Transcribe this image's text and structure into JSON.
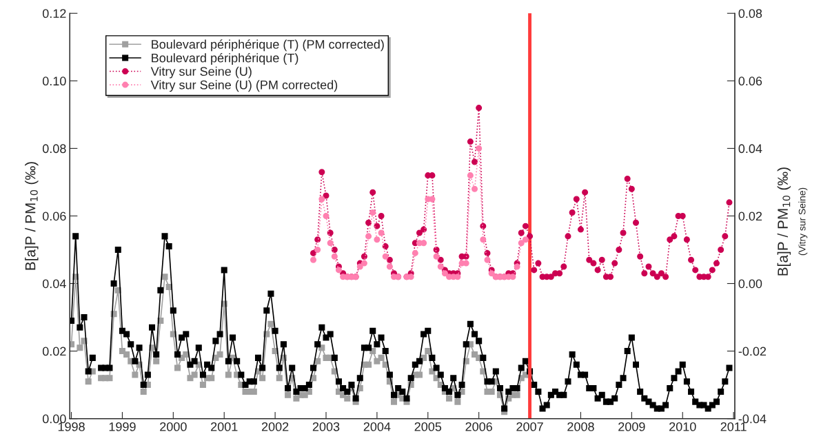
{
  "chart_data": {
    "type": "line",
    "ylabel": "B[a]P / PM$_{10}$ (‰)",
    "y2label": "B[a]P / PM$_{10}$ (‰)\n(Vitry sur Seine)",
    "x": [
      "1998-01",
      "1998-02",
      "1998-03",
      "1998-04",
      "1998-05",
      "1998-06",
      "1998-07",
      "1998-08",
      "1998-09",
      "1998-10",
      "1998-11",
      "1998-12",
      "1999-01",
      "1999-02",
      "1999-03",
      "1999-04",
      "1999-05",
      "1999-06",
      "1999-07",
      "1999-08",
      "1999-09",
      "1999-10",
      "1999-11",
      "1999-12",
      "2000-01",
      "2000-02",
      "2000-03",
      "2000-04",
      "2000-05",
      "2000-06",
      "2000-07",
      "2000-08",
      "2000-09",
      "2000-10",
      "2000-11",
      "2000-12",
      "2001-01",
      "2001-02",
      "2001-03",
      "2001-04",
      "2001-05",
      "2001-06",
      "2001-07",
      "2001-08",
      "2001-09",
      "2001-10",
      "2001-11",
      "2001-12",
      "2002-01",
      "2002-02",
      "2002-03",
      "2002-04",
      "2002-05",
      "2002-06",
      "2002-07",
      "2002-08",
      "2002-09",
      "2002-10",
      "2002-11",
      "2002-12",
      "2003-01",
      "2003-02",
      "2003-03",
      "2003-04",
      "2003-05",
      "2003-06",
      "2003-07",
      "2003-08",
      "2003-09",
      "2003-10",
      "2003-11",
      "2003-12",
      "2004-01",
      "2004-02",
      "2004-03",
      "2004-04",
      "2004-05",
      "2004-06",
      "2004-07",
      "2004-08",
      "2004-09",
      "2004-10",
      "2004-11",
      "2004-12",
      "2005-01",
      "2005-02",
      "2005-03",
      "2005-04",
      "2005-05",
      "2005-06",
      "2005-07",
      "2005-08",
      "2005-09",
      "2005-10",
      "2005-11",
      "2005-12",
      "2006-01",
      "2006-02",
      "2006-03",
      "2006-04",
      "2006-05",
      "2006-06",
      "2006-07",
      "2006-08",
      "2006-09",
      "2006-10",
      "2006-11",
      "2006-12",
      "2007-01",
      "2007-02",
      "2007-03",
      "2007-04",
      "2007-05",
      "2007-06",
      "2007-07",
      "2007-08",
      "2007-09",
      "2007-10",
      "2007-11",
      "2007-12",
      "2008-01",
      "2008-02",
      "2008-03",
      "2008-04",
      "2008-05",
      "2008-06",
      "2008-07",
      "2008-08",
      "2008-09",
      "2008-10",
      "2008-11",
      "2008-12",
      "2009-01",
      "2009-02",
      "2009-03",
      "2009-04",
      "2009-05",
      "2009-06",
      "2009-07",
      "2009-08",
      "2009-09",
      "2009-10",
      "2009-11",
      "2009-12",
      "2010-01",
      "2010-02",
      "2010-03",
      "2010-04",
      "2010-05",
      "2010-06",
      "2010-07",
      "2010-08",
      "2010-09",
      "2010-10",
      "2010-11",
      "2010-12"
    ],
    "series": [
      {
        "name": "Boulevard périphérique (T) (PM corrected)",
        "color": "#a0a0a0",
        "marker": "square",
        "line_style": "solid",
        "values": [
          0.022,
          0.042,
          0.021,
          0.023,
          0.011,
          0.014,
          null,
          0.012,
          0.012,
          0.012,
          0.031,
          0.038,
          0.02,
          0.019,
          0.017,
          0.013,
          0.016,
          0.008,
          0.01,
          0.021,
          0.017,
          0.029,
          0.042,
          0.039,
          0.025,
          0.015,
          0.018,
          0.019,
          0.012,
          0.013,
          0.016,
          0.01,
          0.012,
          0.012,
          0.018,
          0.019,
          0.034,
          0.013,
          0.018,
          0.013,
          0.01,
          0.008,
          0.008,
          0.008,
          0.014,
          0.012,
          0.025,
          0.028,
          0.02,
          0.012,
          0.018,
          0.007,
          0.012,
          0.006,
          0.007,
          0.007,
          0.008,
          0.012,
          0.017,
          0.021,
          0.018,
          0.018,
          0.014,
          0.008,
          0.007,
          0.006,
          0.009,
          0.005,
          0.009,
          0.016,
          0.016,
          0.02,
          0.017,
          0.018,
          0.016,
          0.011,
          0.005,
          0.007,
          0.006,
          0.005,
          0.01,
          0.013,
          0.013,
          0.018,
          0.02,
          0.014,
          0.012,
          0.01,
          0.008,
          0.006,
          0.009,
          0.005,
          0.008,
          0.017,
          0.022,
          0.019,
          0.018,
          0.014,
          0.008,
          0.008,
          0.011,
          0.007,
          0.002,
          0.006,
          0.007,
          0.007,
          0.012,
          0.013,
          0.013,
          null,
          null,
          null,
          null,
          null,
          null,
          null,
          null,
          null,
          null,
          null,
          null,
          null,
          null,
          null,
          null,
          null,
          null,
          null,
          null,
          null,
          null,
          null,
          null,
          null,
          null,
          null,
          null,
          null,
          null,
          null,
          null,
          null,
          null,
          null,
          null,
          null,
          null,
          null,
          null,
          null,
          null,
          null,
          null,
          null,
          null,
          null
        ]
      },
      {
        "name": "Boulevard périphérique (T)",
        "color": "#000000",
        "marker": "square",
        "line_style": "solid",
        "values": [
          0.029,
          0.054,
          0.027,
          0.03,
          0.014,
          0.018,
          null,
          0.015,
          0.015,
          0.015,
          0.04,
          0.05,
          0.026,
          0.025,
          0.022,
          0.017,
          0.021,
          0.01,
          0.013,
          0.027,
          0.019,
          0.038,
          0.054,
          0.051,
          0.032,
          0.019,
          0.024,
          0.025,
          0.016,
          0.017,
          0.021,
          0.013,
          0.016,
          0.015,
          0.023,
          0.025,
          0.044,
          0.017,
          0.024,
          0.017,
          0.013,
          0.01,
          0.011,
          0.011,
          0.018,
          0.015,
          0.032,
          0.037,
          0.026,
          0.015,
          0.022,
          0.009,
          0.015,
          0.008,
          0.009,
          0.009,
          0.01,
          0.015,
          0.022,
          0.027,
          0.024,
          0.025,
          0.018,
          0.011,
          0.009,
          0.008,
          0.01,
          0.006,
          0.012,
          0.021,
          0.021,
          0.026,
          0.022,
          0.024,
          0.02,
          0.013,
          0.007,
          0.009,
          0.008,
          0.006,
          0.012,
          0.016,
          0.017,
          0.025,
          0.026,
          0.018,
          0.015,
          0.013,
          0.009,
          0.008,
          0.012,
          0.007,
          0.01,
          0.022,
          0.028,
          0.025,
          0.023,
          0.018,
          0.011,
          0.011,
          0.014,
          0.009,
          0.003,
          0.008,
          0.009,
          0.009,
          0.015,
          0.017,
          0.014,
          0.01,
          0.008,
          0.003,
          0.004,
          0.007,
          0.008,
          0.007,
          0.007,
          0.011,
          0.019,
          0.016,
          0.013,
          0.013,
          0.009,
          0.009,
          0.006,
          0.007,
          0.005,
          0.005,
          0.006,
          0.01,
          0.012,
          0.02,
          0.024,
          0.016,
          0.008,
          0.006,
          0.005,
          0.004,
          0.003,
          0.003,
          0.004,
          0.009,
          0.012,
          0.014,
          0.016,
          0.011,
          0.008,
          0.005,
          0.004,
          0.004,
          0.003,
          0.004,
          0.005,
          0.008,
          0.011,
          0.015
        ]
      },
      {
        "name": "Vitry sur Seine (U)",
        "color": "#cc0052",
        "marker": "circle",
        "line_style": "dotted",
        "axis": "y2",
        "values": [
          null,
          null,
          null,
          null,
          null,
          null,
          null,
          null,
          null,
          null,
          null,
          null,
          null,
          null,
          null,
          null,
          null,
          null,
          null,
          null,
          null,
          null,
          null,
          null,
          null,
          null,
          null,
          null,
          null,
          null,
          null,
          null,
          null,
          null,
          null,
          null,
          null,
          null,
          null,
          null,
          null,
          null,
          null,
          null,
          null,
          null,
          null,
          null,
          null,
          null,
          null,
          null,
          null,
          null,
          null,
          null,
          null,
          0.009,
          0.013,
          0.033,
          0.026,
          0.015,
          0.01,
          0.005,
          0.003,
          0.002,
          0.002,
          0.002,
          0.006,
          0.008,
          0.018,
          0.027,
          0.017,
          0.02,
          0.011,
          0.007,
          0.003,
          0.002,
          null,
          0.002,
          0.003,
          0.012,
          0.015,
          0.016,
          0.032,
          0.032,
          0.01,
          0.007,
          0.004,
          0.003,
          0.003,
          0.003,
          0.008,
          0.008,
          0.042,
          0.036,
          0.052,
          0.017,
          0.009,
          0.004,
          0.002,
          0.002,
          0.002,
          0.003,
          0.003,
          0.006,
          0.015,
          0.017,
          0.014,
          0.004,
          0.006,
          0.002,
          0.002,
          0.002,
          0.003,
          0.003,
          0.005,
          0.014,
          0.021,
          0.025,
          0.016,
          0.027,
          0.007,
          0.006,
          0.004,
          0.007,
          0.002,
          0.002,
          0.006,
          0.01,
          0.015,
          0.031,
          0.028,
          0.018,
          0.008,
          0.003,
          0.005,
          0.003,
          0.002,
          0.003,
          0.002,
          0.013,
          0.014,
          0.02,
          0.02,
          0.013,
          0.007,
          0.004,
          0.002,
          0.002,
          0.002,
          0.004,
          0.006,
          0.01,
          0.014,
          0.024
        ]
      },
      {
        "name": "Vitry sur Seine (U) (PM corrected)",
        "color": "#ff80b0",
        "marker": "circle",
        "line_style": "dotted",
        "axis": "y2",
        "values": [
          null,
          null,
          null,
          null,
          null,
          null,
          null,
          null,
          null,
          null,
          null,
          null,
          null,
          null,
          null,
          null,
          null,
          null,
          null,
          null,
          null,
          null,
          null,
          null,
          null,
          null,
          null,
          null,
          null,
          null,
          null,
          null,
          null,
          null,
          null,
          null,
          null,
          null,
          null,
          null,
          null,
          null,
          null,
          null,
          null,
          null,
          null,
          null,
          null,
          null,
          null,
          null,
          null,
          null,
          null,
          null,
          null,
          0.007,
          0.01,
          0.025,
          0.02,
          0.012,
          0.008,
          0.004,
          0.002,
          0.002,
          0.002,
          0.002,
          0.005,
          0.006,
          0.014,
          0.021,
          0.013,
          0.015,
          0.008,
          0.005,
          0.002,
          0.002,
          null,
          0.002,
          0.002,
          0.009,
          0.012,
          0.012,
          0.025,
          0.025,
          0.008,
          0.005,
          0.003,
          0.002,
          0.002,
          0.002,
          0.006,
          0.006,
          0.032,
          0.028,
          0.04,
          0.013,
          0.007,
          0.003,
          0.002,
          0.002,
          0.002,
          0.002,
          0.002,
          0.005,
          0.012,
          0.013,
          null,
          null,
          null,
          null,
          null,
          null,
          null,
          null,
          null,
          null,
          null,
          null,
          null,
          null,
          null,
          null,
          null,
          null,
          null,
          null,
          null,
          null,
          null,
          null,
          null,
          null,
          null,
          null,
          null,
          null,
          null,
          null,
          null,
          null,
          null,
          null,
          null,
          null,
          null,
          null,
          null,
          null,
          null,
          null,
          null,
          null,
          null,
          null
        ]
      }
    ],
    "xlim": [
      "1997-12-20",
      "2011-01-10"
    ],
    "xticks": [
      {
        "value": "1998",
        "label": "1998"
      },
      {
        "value": "1999",
        "label": "1999"
      },
      {
        "value": "2000",
        "label": "2000"
      },
      {
        "value": "2001",
        "label": "2001"
      },
      {
        "value": "2002",
        "label": "2002"
      },
      {
        "value": "2003",
        "label": "2003"
      },
      {
        "value": "2004",
        "label": "2004"
      },
      {
        "value": "2005",
        "label": "2005"
      },
      {
        "value": "2006",
        "label": "2006"
      },
      {
        "value": "2007",
        "label": "2007"
      },
      {
        "value": "2008",
        "label": "2008"
      },
      {
        "value": "2009",
        "label": "2009"
      },
      {
        "value": "2010",
        "label": "2010"
      },
      {
        "value": "2011",
        "label": "2011"
      }
    ],
    "ylim": [
      0,
      0.12
    ],
    "yticks": [
      {
        "value": 0,
        "label": "0.00"
      },
      {
        "value": 0.02,
        "label": "0.02"
      },
      {
        "value": 0.04,
        "label": "0.04"
      },
      {
        "value": 0.06,
        "label": "0.06"
      },
      {
        "value": 0.08,
        "label": "0.08"
      },
      {
        "value": 0.1,
        "label": "0.10"
      },
      {
        "value": 0.12,
        "label": "0.12"
      }
    ],
    "y2lim": [
      -0.04,
      0.08
    ],
    "y2ticks": [
      {
        "value": -0.04,
        "label": "-0.04"
      },
      {
        "value": -0.02,
        "label": "-0.02"
      },
      {
        "value": 0,
        "label": "0.00"
      },
      {
        "value": 0.02,
        "label": "0.02"
      },
      {
        "value": 0.04,
        "label": "0.04"
      },
      {
        "value": 0.06,
        "label": "0.06"
      },
      {
        "value": 0.08,
        "label": "0.08"
      }
    ],
    "ref_lines": [
      {
        "axis": "x",
        "value": "2007-01",
        "color": "#ff3b3b",
        "line_style": "solid"
      }
    ],
    "legend": "top left",
    "grid": false
  }
}
